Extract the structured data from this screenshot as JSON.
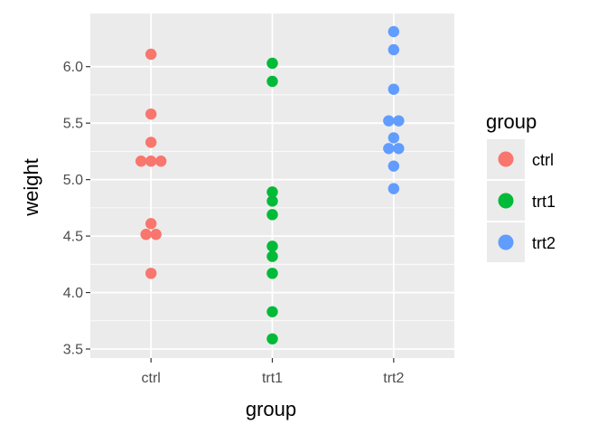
{
  "chart_data": {
    "type": "scatter",
    "xlabel": "group",
    "ylabel": "weight",
    "categories": [
      "ctrl",
      "trt1",
      "trt2"
    ],
    "y_ticks": [
      "3.5",
      "4.0",
      "4.5",
      "5.0",
      "5.5",
      "6.0"
    ],
    "ylim": [
      3.42,
      6.47
    ],
    "grid": true,
    "legend": {
      "title": "group",
      "placement": "right",
      "entries": [
        "ctrl",
        "trt1",
        "trt2"
      ]
    },
    "colors": {
      "ctrl": "#F8766D",
      "trt1": "#00BA38",
      "trt2": "#619CFF",
      "panel_background": "#EBEBEB",
      "grid": "#FFFFFF"
    },
    "series": [
      {
        "name": "ctrl",
        "values": [
          4.17,
          5.58,
          5.18,
          6.11,
          4.5,
          4.61,
          5.17,
          4.53,
          5.33,
          5.14
        ]
      },
      {
        "name": "trt1",
        "values": [
          4.81,
          4.17,
          4.41,
          3.59,
          5.87,
          3.83,
          6.03,
          4.89,
          4.32,
          4.69
        ]
      },
      {
        "name": "trt2",
        "values": [
          6.31,
          5.12,
          5.54,
          5.5,
          5.37,
          5.29,
          4.92,
          6.15,
          5.8,
          5.26
        ]
      }
    ]
  }
}
